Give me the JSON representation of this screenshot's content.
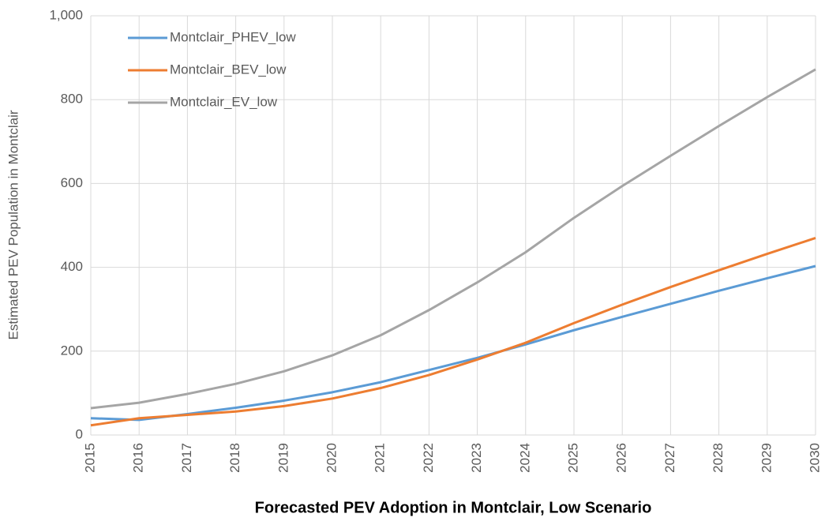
{
  "chart_data": {
    "type": "line",
    "title": "Forecasted PEV Adoption in Montclair, Low Scenario",
    "y_label": "Estimated PEV Population in Montclair",
    "categories": [
      "2015",
      "2016",
      "2017",
      "2018",
      "2019",
      "2020",
      "2021",
      "2022",
      "2023",
      "2024",
      "2025",
      "2026",
      "2027",
      "2028",
      "2029",
      "2030"
    ],
    "series": [
      {
        "name": "Montclair_PHEV_low",
        "color": "#5b9bd5",
        "values": [
          40,
          36,
          50,
          65,
          82,
          102,
          126,
          155,
          184,
          216,
          250,
          282,
          313,
          344,
          374,
          403
        ]
      },
      {
        "name": "Montclair_BEV_low",
        "color": "#ed7d31",
        "values": [
          23,
          40,
          48,
          56,
          69,
          87,
          112,
          143,
          180,
          220,
          267,
          311,
          353,
          393,
          432,
          470
        ]
      },
      {
        "name": "Montclair_EV_low",
        "color": "#a5a5a5",
        "values": [
          64,
          77,
          98,
          122,
          152,
          190,
          238,
          298,
          364,
          436,
          518,
          594,
          666,
          737,
          806,
          872
        ]
      }
    ],
    "ylim": [
      0,
      1000
    ],
    "yticks": [
      0,
      200,
      400,
      600,
      800,
      {
        "value": 1000,
        "label": "1,000"
      }
    ],
    "grid": true,
    "legend": "upper-left"
  }
}
